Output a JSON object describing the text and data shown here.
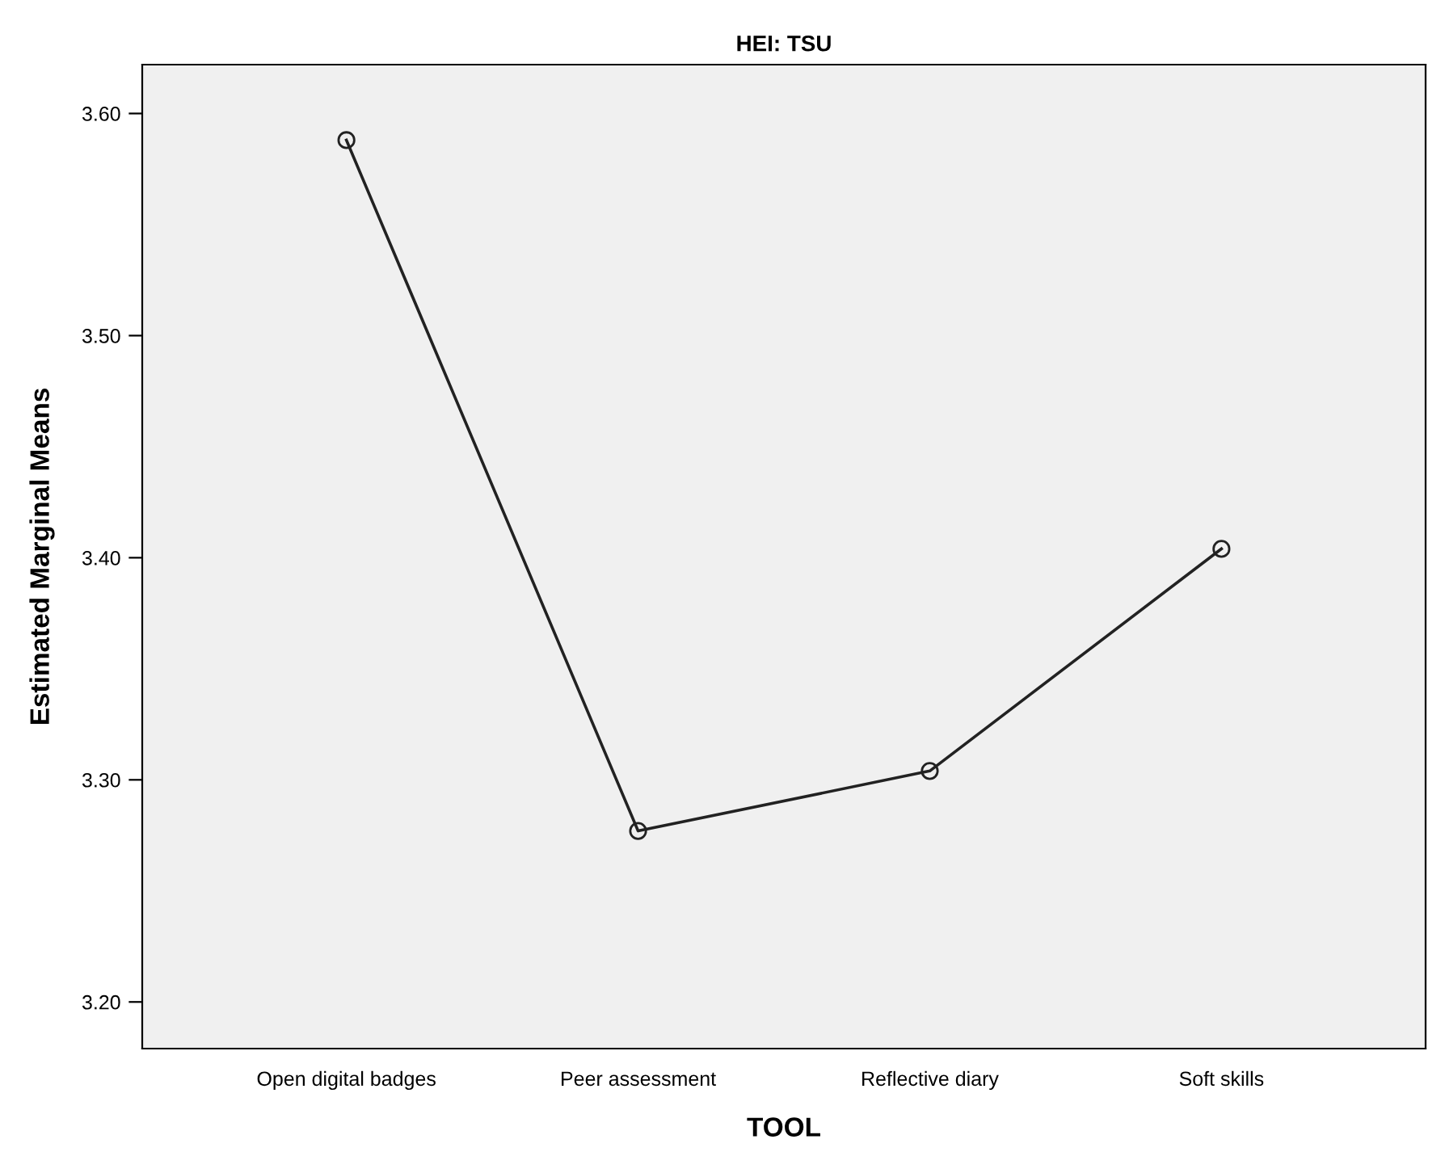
{
  "chart_data": {
    "type": "line",
    "title": "HEI: TSU",
    "xlabel": "TOOL",
    "ylabel": "Estimated Marginal Means",
    "categories": [
      "Open digital badges",
      "Peer assessment",
      "Reflective diary",
      "Soft skills"
    ],
    "series": [
      {
        "color": "#222222",
        "values": [
          3.588,
          3.277,
          3.304,
          3.404
        ]
      }
    ],
    "ylim": [
      3.179,
      3.622
    ],
    "yticks": [
      {
        "value": 3.2,
        "label": "3.20"
      },
      {
        "value": 3.3,
        "label": "3.30"
      },
      {
        "value": 3.4,
        "label": "3.40"
      },
      {
        "value": 3.5,
        "label": "3.50"
      },
      {
        "value": 3.6,
        "label": "3.60"
      }
    ],
    "marker": "circle",
    "line_style": "solid",
    "grid": false,
    "legend": false
  }
}
